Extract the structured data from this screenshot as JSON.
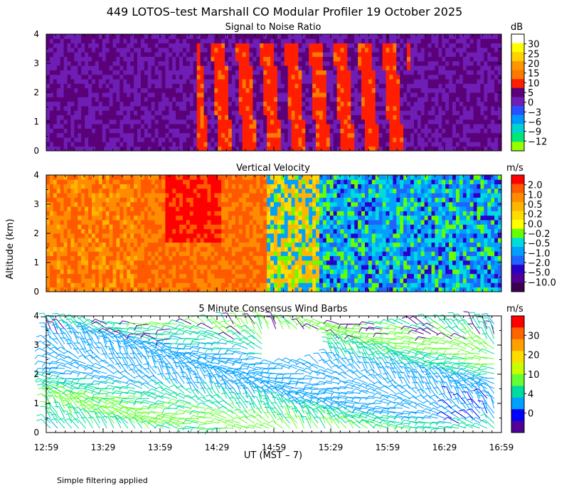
{
  "figure": {
    "title": "449 LOTOS–test Marshall CO Modular Profiler 19 October 2025",
    "ylabel": "Altitude (km)",
    "xlabel": "UT  (MST – 7)",
    "footnote": "Simple filtering applied",
    "x_ticks": [
      "12:59",
      "13:29",
      "13:59",
      "14:29",
      "14:59",
      "15:29",
      "15:59",
      "16:29",
      "16:59"
    ]
  },
  "chart_data": [
    {
      "type": "heatmap",
      "title": "Signal to Noise Ratio",
      "unit": "dB",
      "ylim": [
        0,
        4
      ],
      "y_ticks": [
        "0",
        "1",
        "2",
        "3",
        "4"
      ],
      "colorbar_labels": [
        "30",
        "25",
        "20",
        "15",
        "10",
        "5",
        "0",
        "−3",
        "−6",
        "−9",
        "−12"
      ],
      "colors": [
        "#ffffff",
        "#ffff00",
        "#ffd200",
        "#ff9600",
        "#ff7800",
        "#ff1e00",
        "#5a0078",
        "#6e1eb4",
        "#2850ff",
        "#0096ff",
        "#00d2d2",
        "#00e678",
        "#96ff00"
      ]
    },
    {
      "type": "heatmap",
      "title": "Vertical Velocity",
      "unit": "m/s",
      "ylim": [
        0,
        4
      ],
      "y_ticks": [
        "0",
        "1",
        "2",
        "3",
        "4"
      ],
      "colorbar_labels": [
        "2.0",
        "1.0",
        "0.5",
        "0.2",
        "0.0",
        "−0.2",
        "−0.5",
        "−1.0",
        "−2.0",
        "−5.0",
        "−10.0"
      ],
      "colors": [
        "#ff0000",
        "#ff5a00",
        "#ff8c00",
        "#ffb400",
        "#ffdc00",
        "#ffff00",
        "#64ff00",
        "#00dcdc",
        "#00a0ff",
        "#1e64ff",
        "#2800c8",
        "#500096",
        "#3c0050"
      ]
    },
    {
      "type": "wind_barbs",
      "title": "5 Minute Consensus Wind Barbs",
      "unit": "m/s",
      "ylim": [
        0,
        4
      ],
      "y_ticks": [
        "0",
        "1",
        "2",
        "3",
        "4"
      ],
      "colorbar_labels": [
        "30",
        "20",
        "10",
        "4",
        "0"
      ],
      "colors": [
        "#ff0000",
        "#ff6400",
        "#ffa000",
        "#ffdc00",
        "#c8ff00",
        "#64ff32",
        "#00dca0",
        "#00a0ff",
        "#0000ff",
        "#500096"
      ]
    }
  ]
}
